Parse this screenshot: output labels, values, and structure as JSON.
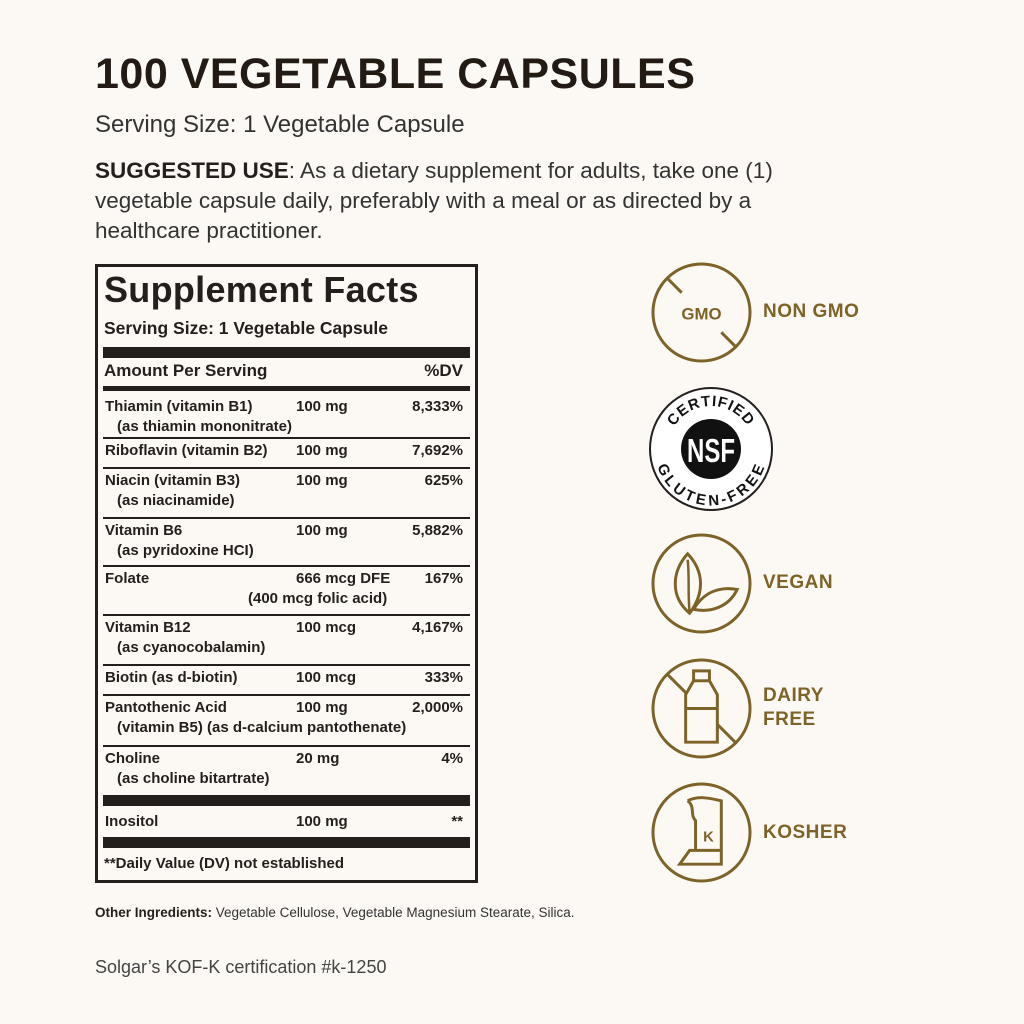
{
  "header": {
    "title": "100 VEGETABLE CAPSULES",
    "serving_size": "Serving Size: 1 Vegetable Capsule",
    "suggested_use_label": "SUGGESTED USE",
    "suggested_use_text": ": As a dietary supplement for adults, take one (1) vegetable capsule daily, preferably with a meal or as directed by a healthcare practitioner."
  },
  "facts": {
    "title": "Supplement Facts",
    "serving_size": "Serving Size: 1 Vegetable Capsule",
    "col_amount": "Amount Per Serving",
    "col_dv": "%DV",
    "rows": [
      {
        "name": "Thiamin (vitamin B1)",
        "sub": "(as thiamin mononitrate)",
        "amount": "100 mg",
        "dv": "8,333%"
      },
      {
        "name": "Riboflavin (vitamin B2)",
        "sub": "",
        "amount": "100 mg",
        "dv": "7,692%"
      },
      {
        "name": "Niacin (vitamin B3)",
        "sub": "(as niacinamide)",
        "amount": "100 mg",
        "dv": "625%"
      },
      {
        "name": "Vitamin B6",
        "sub": "(as pyridoxine HCI)",
        "amount": "100 mg",
        "dv": "5,882%"
      },
      {
        "name": "Folate",
        "sub": "(400 mcg folic acid)",
        "amount": "666 mcg DFE",
        "dv": "167%"
      },
      {
        "name": "Vitamin B12",
        "sub": "(as cyanocobalamin)",
        "amount": "100 mcg",
        "dv": "4,167%"
      },
      {
        "name": "Biotin (as d-biotin)",
        "sub": "",
        "amount": "100 mcg",
        "dv": "333%"
      },
      {
        "name": "Pantothenic Acid",
        "sub": "(vitamin B5) (as d-calcium pantothenate)",
        "amount": "100 mg",
        "dv": "2,000%"
      },
      {
        "name": "Choline",
        "sub": "(as choline bitartrate)",
        "amount": "20 mg",
        "dv": "4%"
      },
      {
        "name": "Inositol",
        "sub": "",
        "amount": "100 mg",
        "dv": "**"
      }
    ],
    "footnote": "**Daily Value (DV) not established"
  },
  "other_ingredients": {
    "label": "Other Ingredients:",
    "text": " Vegetable Cellulose, Vegetable Magnesium Stearate, Silica."
  },
  "certification": "Solgar’s KOF-K certification #k-1250",
  "badges": {
    "gmo_icon_text": "GMO",
    "non_gmo": "NON GMO",
    "nsf_top": "CERTIFIED",
    "nsf_mid": "NSF",
    "nsf_bottom": "GLUTEN-FREE",
    "vegan": "VEGAN",
    "dairy_free_1": "DAIRY",
    "dairy_free_2": "FREE",
    "kosher_icon_text": "K",
    "kosher": "KOSHER"
  },
  "colors": {
    "gold": "#7d6327",
    "text": "#231f1c",
    "background": "#fcf9f4"
  }
}
